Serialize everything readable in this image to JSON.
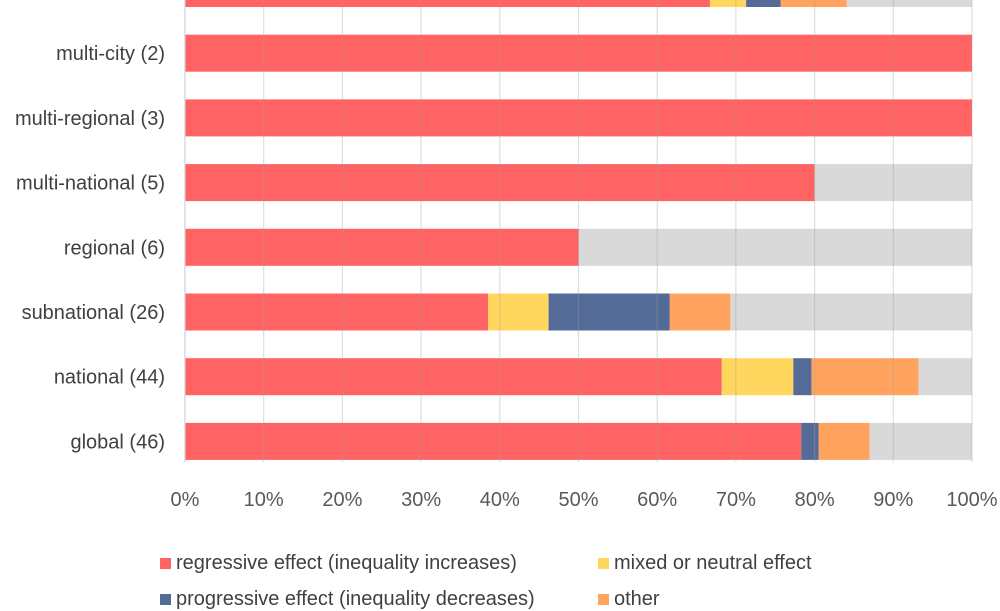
{
  "chart_data": {
    "type": "bar",
    "orientation": "horizontal",
    "stacked": true,
    "normalized": true,
    "title": "",
    "xlabel": "",
    "ylabel": "",
    "xlim": [
      0,
      100
    ],
    "grid": true,
    "x_ticks": [
      "0%",
      "10%",
      "20%",
      "30%",
      "40%",
      "50%",
      "60%",
      "70%",
      "80%",
      "90%",
      "100%"
    ],
    "categories": [
      "(cut off)",
      "multi-city (2)",
      "multi-regional (3)",
      "multi-national (5)",
      "regional (6)",
      "subnational (26)",
      "national (44)",
      "global (46)"
    ],
    "series": [
      {
        "name": "regressive effect (inequality increases)",
        "color": "#ff6363",
        "values": [
          66.7,
          100,
          100,
          80,
          50,
          38.5,
          68.2,
          78.3
        ]
      },
      {
        "name": "mixed or neutral effect",
        "color": "#ffd75e",
        "values": [
          4.6,
          0,
          0,
          0,
          0,
          7.7,
          9.1,
          0
        ]
      },
      {
        "name": "progressive effect (inequality decreases)",
        "color": "#546a97",
        "values": [
          4.4,
          0,
          0,
          0,
          0,
          15.4,
          2.3,
          2.2
        ]
      },
      {
        "name": "other",
        "color": "#ffa35e",
        "values": [
          8.4,
          0,
          0,
          0,
          0,
          7.7,
          13.6,
          6.5
        ]
      },
      {
        "name": "(not shown in legend)",
        "color": "#d9d9d9",
        "values": [
          15.9,
          0,
          0,
          20,
          50,
          30.7,
          6.8,
          13.0
        ]
      }
    ],
    "legend": {
      "position": "bottom",
      "entries": [
        {
          "label": "regressive effect (inequality increases)",
          "color": "#ff6363"
        },
        {
          "label": "mixed or neutral effect",
          "color": "#ffd75e"
        },
        {
          "label": "progressive effect (inequality decreases)",
          "color": "#546a97"
        },
        {
          "label": "other",
          "color": "#ffa35e"
        }
      ]
    }
  }
}
